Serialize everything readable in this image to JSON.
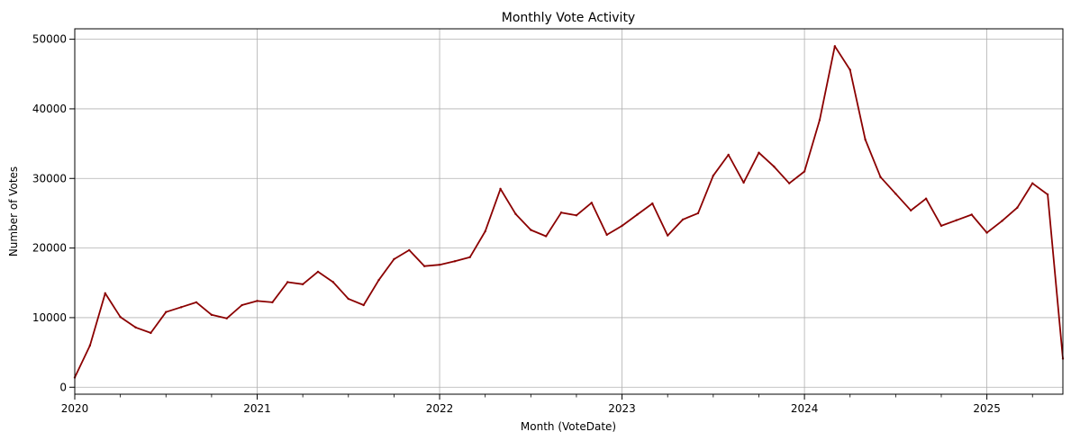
{
  "chart_data": {
    "type": "line",
    "title": "Monthly Vote Activity",
    "xlabel": "Month (VoteDate)",
    "ylabel": "Number of Votes",
    "xlim": [
      "2020-01",
      "2025-06"
    ],
    "ylim": [
      -1000,
      51500
    ],
    "grid": true,
    "legend": "none",
    "line_color": "#8b0000",
    "x_ticks": [
      "2020",
      "2021",
      "2022",
      "2023",
      "2024",
      "2025"
    ],
    "y_ticks": [
      0,
      10000,
      20000,
      30000,
      40000,
      50000
    ],
    "series": [
      {
        "x": [
          "2020-01",
          "2020-02",
          "2020-03",
          "2020-04",
          "2020-05",
          "2020-06",
          "2020-07",
          "2020-08",
          "2020-09",
          "2020-10",
          "2020-11",
          "2020-12",
          "2021-01",
          "2021-02",
          "2021-03",
          "2021-04",
          "2021-05",
          "2021-06",
          "2021-07",
          "2021-08",
          "2021-09",
          "2021-10",
          "2021-11",
          "2021-12",
          "2022-01",
          "2022-02",
          "2022-03",
          "2022-04",
          "2022-05",
          "2022-06",
          "2022-07",
          "2022-08",
          "2022-09",
          "2022-10",
          "2022-11",
          "2022-12",
          "2023-01",
          "2023-02",
          "2023-03",
          "2023-04",
          "2023-05",
          "2023-06",
          "2023-07",
          "2023-08",
          "2023-09",
          "2023-10",
          "2023-11",
          "2023-12",
          "2024-01",
          "2024-02",
          "2024-03",
          "2024-04",
          "2024-05",
          "2024-06",
          "2024-07",
          "2024-08",
          "2024-09",
          "2024-10",
          "2024-11",
          "2024-12",
          "2025-01",
          "2025-02",
          "2025-03",
          "2025-04",
          "2025-05",
          "2025-06"
        ],
        "values": [
          1400,
          6000,
          13500,
          10100,
          8600,
          7800,
          10800,
          11500,
          12200,
          10400,
          9900,
          11800,
          12400,
          12200,
          15100,
          14800,
          16600,
          15100,
          12700,
          11800,
          15400,
          18400,
          19700,
          17400,
          17600,
          18100,
          18700,
          22400,
          28500,
          24900,
          22600,
          21700,
          25100,
          24700,
          26500,
          21900,
          23200,
          24800,
          26400,
          21800,
          24100,
          25000,
          30400,
          33400,
          29400,
          33700,
          31700,
          29300,
          31000,
          38400,
          49000,
          45600,
          35600,
          30200,
          27800,
          25400,
          27100,
          23200,
          24000,
          24800,
          22200,
          23900,
          25800,
          29300,
          27700,
          4100
        ]
      }
    ]
  }
}
